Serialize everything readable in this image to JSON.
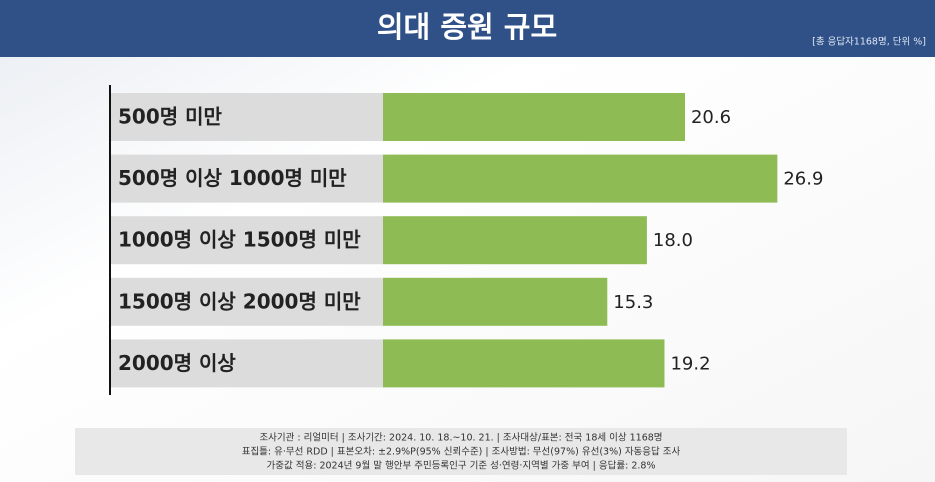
{
  "chart_data": {
    "type": "barh",
    "title": "의대 증원 규모",
    "subtitle": "[총 응답자1168명, 단위 %]",
    "categories": [
      "500명 미만",
      "500명 이상 1000명 미만",
      "1000명 이상 1500명 미만",
      "1500명 이상 2000명 미만",
      "2000명 이상"
    ],
    "values": [
      20.6,
      26.9,
      18.0,
      15.3,
      19.2
    ],
    "value_labels": [
      "20.6",
      "26.9",
      "18.0",
      "15.3",
      "19.2"
    ],
    "color": "#8fbb54",
    "footnote": [
      "조사기관 : 리얼미터  |  조사기간: 2024. 10. 18.~10. 21. | 조사대상/표본: 전국 18세 이상 1168명",
      "표집틀: 유·무선 RDD | 표본오차: ±2.9%P(95% 신뢰수준) | 조사방법: 무선(97%) 유선(3%) 자동응답 조사",
      "가중값 적용: 2024년 9월 말 행안부 주민등록인구 기준 성·연령·지역별 가중 부여 | 응답률: 2.8%"
    ]
  }
}
